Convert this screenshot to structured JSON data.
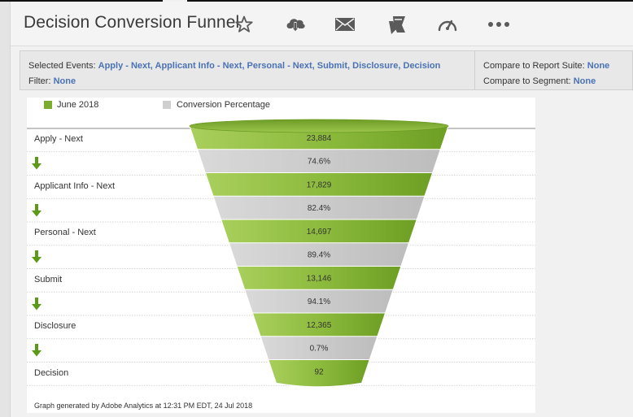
{
  "header": {
    "title": "Decision Conversion Funnel"
  },
  "toolbar": {
    "icons": [
      "star-icon",
      "cloud-download-icon",
      "mail-icon",
      "bookmark-icon",
      "speedometer-icon",
      "more-icon"
    ]
  },
  "info": {
    "selected_events_label": "Selected Events:",
    "selected_events_value": "Apply - Next, Applicant Info - Next, Personal - Next, Submit, Disclosure, Decision",
    "filter_label": "Filter:",
    "filter_value": "None",
    "compare_suite_label": "Compare to Report Suite:",
    "compare_suite_value": "None",
    "compare_segment_label": "Compare to Segment:",
    "compare_segment_value": "None"
  },
  "legend": {
    "series1": "June 2018",
    "series2": "Conversion Percentage"
  },
  "colors": {
    "green": "#7aac2e",
    "gray": "#cfcfcf",
    "arrow": "#5b9a17",
    "link": "#4a72b5"
  },
  "chart_data": {
    "type": "funnel",
    "steps": [
      {
        "label": "Apply - Next",
        "value": "23,884"
      },
      {
        "label": "Applicant Info - Next",
        "value": "17,829"
      },
      {
        "label": "Personal - Next",
        "value": "14,697"
      },
      {
        "label": "Submit",
        "value": "13,146"
      },
      {
        "label": "Disclosure",
        "value": "12,365"
      },
      {
        "label": "Decision",
        "value": "92"
      }
    ],
    "conversions": [
      "74.6%",
      "82.4%",
      "89.4%",
      "94.1%",
      "0.7%"
    ]
  },
  "footer": "Graph generated by Adobe Analytics at 12:31 PM EDT, 24 Jul 2018"
}
